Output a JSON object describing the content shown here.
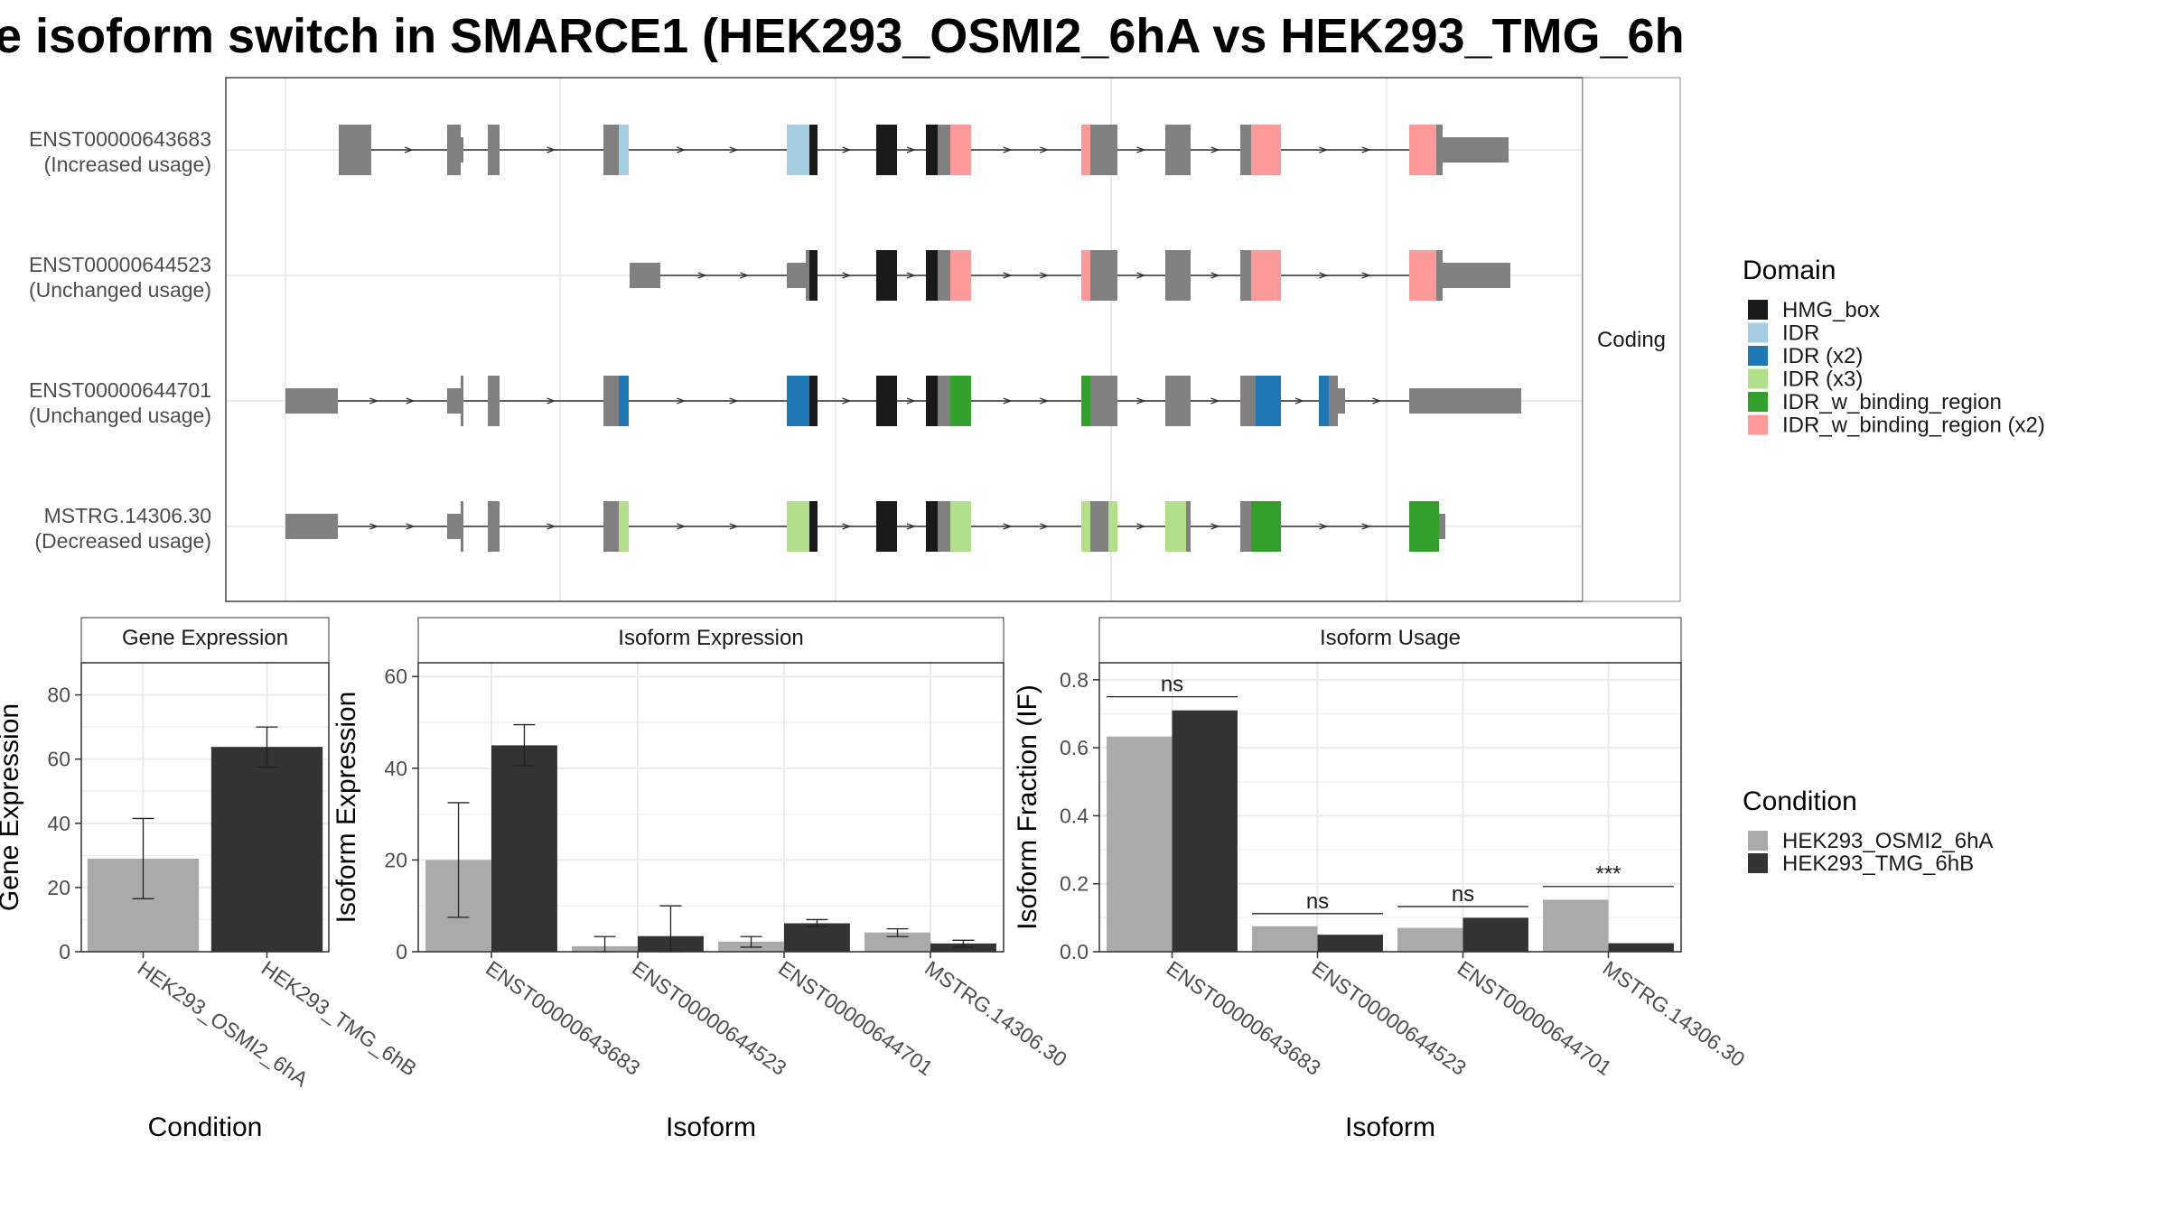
{
  "title": "e isoform switch in SMARCE1 (HEK293_OSMI2_6hA vs HEK293_TMG_6h",
  "colors": {
    "exon": "#808080",
    "condition_a": "#AAAAAA",
    "condition_b": "#333333",
    "panel_border": "#555555",
    "grid": "#EBEBEB",
    "strip_fill": "#FFFFFF"
  },
  "chart_data": [
    {
      "type": "gene-structure",
      "facet_label": "Coding",
      "domain_legend": {
        "title": "Domain",
        "entries": [
          {
            "label": "HMG_box",
            "color": "#1A1A1A"
          },
          {
            "label": "IDR",
            "color": "#A6CEE3"
          },
          {
            "label": "IDR (x2)",
            "color": "#1F78B4"
          },
          {
            "label": "IDR (x3)",
            "color": "#B2DF8A"
          },
          {
            "label": "IDR_w_binding_region",
            "color": "#33A02C"
          },
          {
            "label": "IDR_w_binding_region (x2)",
            "color": "#FB9A99"
          }
        ]
      },
      "isoforms": [
        {
          "id": "ENST00000643683",
          "usage": "(Increased usage)",
          "exons": [
            {
              "s": 375,
              "e": 411,
              "domain": null,
              "tall": true
            },
            {
              "s": 495,
              "e": 510,
              "domain": null,
              "tall": true
            },
            {
              "s": 510,
              "e": 513,
              "domain": null,
              "tall": false
            },
            {
              "s": 540,
              "e": 553,
              "domain": null,
              "tall": true
            },
            {
              "s": 668,
              "e": 685,
              "domain": null,
              "tall": true
            },
            {
              "s": 685,
              "e": 696,
              "domain": "IDR",
              "tall": true
            },
            {
              "s": 871,
              "e": 896,
              "domain": "IDR",
              "tall": true
            },
            {
              "s": 896,
              "e": 905,
              "domain": "HMG_box",
              "tall": true
            },
            {
              "s": 970,
              "e": 993,
              "domain": "HMG_box",
              "tall": true
            },
            {
              "s": 1025,
              "e": 1038,
              "domain": "HMG_box",
              "tall": true
            },
            {
              "s": 1038,
              "e": 1052,
              "domain": null,
              "tall": true
            },
            {
              "s": 1052,
              "e": 1075,
              "domain": "IDR_w_binding_region (x2)",
              "tall": true
            },
            {
              "s": 1197,
              "e": 1207,
              "domain": "IDR_w_binding_region (x2)",
              "tall": true
            },
            {
              "s": 1207,
              "e": 1237,
              "domain": null,
              "tall": true
            },
            {
              "s": 1290,
              "e": 1318,
              "domain": null,
              "tall": true
            },
            {
              "s": 1373,
              "e": 1385,
              "domain": null,
              "tall": true
            },
            {
              "s": 1385,
              "e": 1418,
              "domain": "IDR_w_binding_region (x2)",
              "tall": true
            },
            {
              "s": 1560,
              "e": 1590,
              "domain": "IDR_w_binding_region (x2)",
              "tall": true
            },
            {
              "s": 1590,
              "e": 1597,
              "domain": null,
              "tall": true
            },
            {
              "s": 1597,
              "e": 1670,
              "domain": null,
              "tall": false
            }
          ]
        },
        {
          "id": "ENST00000644523",
          "usage": "(Unchanged usage)",
          "exons": [
            {
              "s": 697,
              "e": 731,
              "domain": null,
              "tall": false
            },
            {
              "s": 871,
              "e": 892,
              "domain": null,
              "tall": false
            },
            {
              "s": 892,
              "e": 896,
              "domain": null,
              "tall": true
            },
            {
              "s": 896,
              "e": 905,
              "domain": "HMG_box",
              "tall": true
            },
            {
              "s": 970,
              "e": 993,
              "domain": "HMG_box",
              "tall": true
            },
            {
              "s": 1025,
              "e": 1038,
              "domain": "HMG_box",
              "tall": true
            },
            {
              "s": 1038,
              "e": 1052,
              "domain": null,
              "tall": true
            },
            {
              "s": 1052,
              "e": 1075,
              "domain": "IDR_w_binding_region (x2)",
              "tall": true
            },
            {
              "s": 1197,
              "e": 1207,
              "domain": "IDR_w_binding_region (x2)",
              "tall": true
            },
            {
              "s": 1207,
              "e": 1237,
              "domain": null,
              "tall": true
            },
            {
              "s": 1290,
              "e": 1318,
              "domain": null,
              "tall": true
            },
            {
              "s": 1373,
              "e": 1385,
              "domain": null,
              "tall": true
            },
            {
              "s": 1385,
              "e": 1418,
              "domain": "IDR_w_binding_region (x2)",
              "tall": true
            },
            {
              "s": 1560,
              "e": 1590,
              "domain": "IDR_w_binding_region (x2)",
              "tall": true
            },
            {
              "s": 1590,
              "e": 1597,
              "domain": null,
              "tall": true
            },
            {
              "s": 1597,
              "e": 1672,
              "domain": null,
              "tall": false
            }
          ]
        },
        {
          "id": "ENST00000644701",
          "usage": "(Unchanged usage)",
          "exons": [
            {
              "s": 316,
              "e": 374,
              "domain": null,
              "tall": false
            },
            {
              "s": 495,
              "e": 510,
              "domain": null,
              "tall": false
            },
            {
              "s": 510,
              "e": 513,
              "domain": null,
              "tall": true
            },
            {
              "s": 540,
              "e": 553,
              "domain": null,
              "tall": true
            },
            {
              "s": 668,
              "e": 685,
              "domain": null,
              "tall": true
            },
            {
              "s": 685,
              "e": 696,
              "domain": "IDR (x2)",
              "tall": true
            },
            {
              "s": 871,
              "e": 896,
              "domain": "IDR (x2)",
              "tall": true
            },
            {
              "s": 896,
              "e": 905,
              "domain": "HMG_box",
              "tall": true
            },
            {
              "s": 970,
              "e": 993,
              "domain": "HMG_box",
              "tall": true
            },
            {
              "s": 1025,
              "e": 1038,
              "domain": "HMG_box",
              "tall": true
            },
            {
              "s": 1038,
              "e": 1052,
              "domain": null,
              "tall": true
            },
            {
              "s": 1052,
              "e": 1075,
              "domain": "IDR_w_binding_region",
              "tall": true
            },
            {
              "s": 1197,
              "e": 1207,
              "domain": "IDR_w_binding_region",
              "tall": true
            },
            {
              "s": 1207,
              "e": 1237,
              "domain": null,
              "tall": true
            },
            {
              "s": 1290,
              "e": 1318,
              "domain": null,
              "tall": true
            },
            {
              "s": 1373,
              "e": 1390,
              "domain": null,
              "tall": true
            },
            {
              "s": 1390,
              "e": 1418,
              "domain": "IDR (x2)",
              "tall": true
            },
            {
              "s": 1460,
              "e": 1471,
              "domain": "IDR (x2)",
              "tall": true
            },
            {
              "s": 1471,
              "e": 1481,
              "domain": null,
              "tall": true
            },
            {
              "s": 1481,
              "e": 1489,
              "domain": null,
              "tall": false
            },
            {
              "s": 1560,
              "e": 1684,
              "domain": null,
              "tall": false
            }
          ]
        },
        {
          "id": "MSTRG.14306.30",
          "usage": "(Decreased usage)",
          "exons": [
            {
              "s": 316,
              "e": 374,
              "domain": null,
              "tall": false
            },
            {
              "s": 495,
              "e": 510,
              "domain": null,
              "tall": false
            },
            {
              "s": 510,
              "e": 513,
              "domain": null,
              "tall": true
            },
            {
              "s": 540,
              "e": 553,
              "domain": null,
              "tall": true
            },
            {
              "s": 668,
              "e": 685,
              "domain": null,
              "tall": true
            },
            {
              "s": 685,
              "e": 696,
              "domain": "IDR (x3)",
              "tall": true
            },
            {
              "s": 871,
              "e": 896,
              "domain": "IDR (x3)",
              "tall": true
            },
            {
              "s": 896,
              "e": 905,
              "domain": "HMG_box",
              "tall": true
            },
            {
              "s": 970,
              "e": 993,
              "domain": "HMG_box",
              "tall": true
            },
            {
              "s": 1025,
              "e": 1038,
              "domain": "HMG_box",
              "tall": true
            },
            {
              "s": 1038,
              "e": 1052,
              "domain": null,
              "tall": true
            },
            {
              "s": 1052,
              "e": 1075,
              "domain": "IDR (x3)",
              "tall": true
            },
            {
              "s": 1197,
              "e": 1207,
              "domain": "IDR (x3)",
              "tall": true
            },
            {
              "s": 1207,
              "e": 1227,
              "domain": null,
              "tall": true
            },
            {
              "s": 1227,
              "e": 1237,
              "domain": "IDR (x3)",
              "tall": true
            },
            {
              "s": 1290,
              "e": 1313,
              "domain": "IDR (x3)",
              "tall": true
            },
            {
              "s": 1313,
              "e": 1318,
              "domain": null,
              "tall": true
            },
            {
              "s": 1373,
              "e": 1385,
              "domain": null,
              "tall": true
            },
            {
              "s": 1385,
              "e": 1418,
              "domain": "IDR_w_binding_region",
              "tall": true
            },
            {
              "s": 1560,
              "e": 1593,
              "domain": "IDR_w_binding_region",
              "tall": true
            },
            {
              "s": 1593,
              "e": 1600,
              "domain": null,
              "tall": false
            }
          ]
        }
      ]
    },
    {
      "type": "bar",
      "title": "Gene Expression",
      "xlabel": "Condition",
      "ylabel": "Gene Expression",
      "ylim": [
        0,
        90
      ],
      "yticks": [
        0,
        20,
        40,
        60,
        80
      ],
      "categories": [
        "HEK293_OSMI2_6hA",
        "HEK293_TMG_6hB"
      ],
      "values": [
        29,
        63.8
      ],
      "error_low": [
        16.5,
        57.5
      ],
      "error_high": [
        41.5,
        70
      ]
    },
    {
      "type": "bar",
      "title": "Isoform Expression",
      "xlabel": "Isoform",
      "ylabel": "Isoform Expression",
      "ylim": [
        0,
        63
      ],
      "yticks": [
        0,
        20,
        40,
        60
      ],
      "categories": [
        "ENST00000643683",
        "ENST00000644523",
        "ENST00000644701",
        "MSTRG.14306.30"
      ],
      "series": [
        {
          "name": "HEK293_OSMI2_6hA",
          "values": [
            20,
            1.2,
            2.2,
            4.2
          ],
          "error_low": [
            7.5,
            0,
            1,
            3.3
          ],
          "error_high": [
            32.5,
            3.3,
            3.3,
            5
          ]
        },
        {
          "name": "HEK293_TMG_6hB",
          "values": [
            45,
            3.4,
            6.2,
            1.8
          ],
          "error_low": [
            40.5,
            0,
            5.5,
            1
          ],
          "error_high": [
            49.5,
            10,
            7,
            2.5
          ]
        }
      ]
    },
    {
      "type": "bar",
      "title": "Isoform Usage",
      "xlabel": "Isoform",
      "ylabel": "Isoform Fraction (IF)",
      "ylim": [
        0,
        0.85
      ],
      "yticks": [
        0.0,
        0.2,
        0.4,
        0.6,
        0.8
      ],
      "ytick_labels": [
        "0.0",
        "0.2",
        "0.4",
        "0.6",
        "0.8"
      ],
      "categories": [
        "ENST00000643683",
        "ENST00000644523",
        "ENST00000644701",
        "MSTRG.14306.30"
      ],
      "series": [
        {
          "name": "HEK293_OSMI2_6hA",
          "values": [
            0.633,
            0.075,
            0.07,
            0.153
          ]
        },
        {
          "name": "HEK293_TMG_6hB",
          "values": [
            0.71,
            0.05,
            0.1,
            0.025
          ]
        }
      ],
      "significance": [
        {
          "label": "ns",
          "y": 0.75
        },
        {
          "label": "ns",
          "y": 0.112
        },
        {
          "label": "ns",
          "y": 0.133
        },
        {
          "label": "***",
          "y": 0.192
        }
      ]
    }
  ],
  "condition_legend": {
    "title": "Condition",
    "entries": [
      {
        "label": "HEK293_OSMI2_6hA",
        "color": "#AAAAAA"
      },
      {
        "label": "HEK293_TMG_6hB",
        "color": "#333333"
      }
    ]
  }
}
